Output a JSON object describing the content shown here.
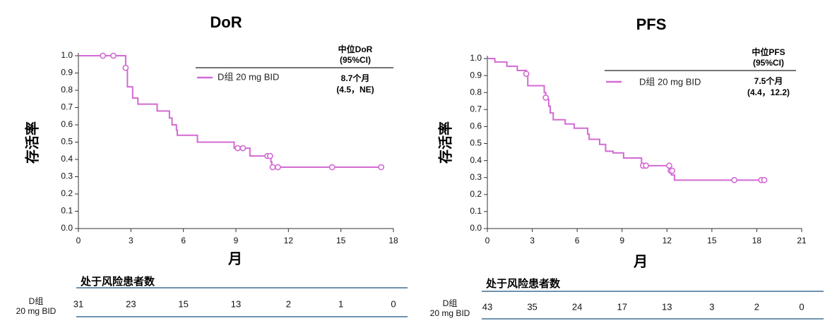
{
  "line_color": "#d36ad3",
  "axis_color": "#333333",
  "table_rule_color": "#3f6e93",
  "chart_data": [
    {
      "type": "line",
      "title": "DoR",
      "xlabel": "月",
      "ylabel": "存活率",
      "xlim": [
        0,
        18
      ],
      "ylim": [
        0,
        1
      ],
      "x_ticks": [
        "0",
        "3",
        "6",
        "9",
        "12",
        "15",
        "18"
      ],
      "y_ticks": [
        "0.0",
        "0.1",
        "0.2",
        "0.3",
        "0.4",
        "0.5",
        "0.6",
        "0.7",
        "0.8",
        "0.9",
        "1.0"
      ],
      "grid": false,
      "legend_position": "top-right",
      "legend_header": [
        "中位DoR",
        "(95%CI)"
      ],
      "legend_value": [
        "8.7个月",
        "(4.5，NE)"
      ],
      "series": [
        {
          "name": "D组 20 mg BID",
          "steps": [
            [
              0,
              1.0
            ],
            [
              2.7,
              0.935
            ],
            [
              2.8,
              0.82
            ],
            [
              3.1,
              0.755
            ],
            [
              3.4,
              0.72
            ],
            [
              4.5,
              0.68
            ],
            [
              5.2,
              0.64
            ],
            [
              5.35,
              0.6
            ],
            [
              5.6,
              0.57
            ],
            [
              5.65,
              0.54
            ],
            [
              6.8,
              0.5
            ],
            [
              8.9,
              0.465
            ],
            [
              9.8,
              0.42
            ],
            [
              11.0,
              0.385
            ],
            [
              11.05,
              0.355
            ],
            [
              17.3,
              0.355
            ]
          ],
          "censored": [
            [
              1.4,
              1.0
            ],
            [
              2.0,
              1.0
            ],
            [
              2.7,
              0.93
            ],
            [
              9.1,
              0.465
            ],
            [
              9.4,
              0.465
            ],
            [
              10.8,
              0.42
            ],
            [
              10.95,
              0.42
            ],
            [
              11.1,
              0.355
            ],
            [
              11.4,
              0.355
            ],
            [
              14.5,
              0.355
            ],
            [
              17.3,
              0.355
            ]
          ]
        }
      ],
      "risk_table": {
        "title": "处于风险患者数",
        "row_label": [
          "D组",
          "20 mg BID"
        ],
        "counts": [
          "31",
          "23",
          "15",
          "13",
          "2",
          "1",
          "0"
        ]
      }
    },
    {
      "type": "line",
      "title": "PFS",
      "xlabel": "月",
      "ylabel": "存活率",
      "xlim": [
        0,
        21
      ],
      "ylim": [
        0,
        1
      ],
      "x_ticks": [
        "0",
        "3",
        "6",
        "9",
        "12",
        "15",
        "18",
        "21"
      ],
      "y_ticks": [
        "0.0",
        "0.1",
        "0.2",
        "0.3",
        "0.4",
        "0.5",
        "0.6",
        "0.7",
        "0.8",
        "0.9",
        "1.0"
      ],
      "grid": false,
      "legend_position": "top-right",
      "legend_header": [
        "中位PFS",
        "(95%CI)"
      ],
      "legend_value": [
        "7.5个月",
        "(4.4，12.2)"
      ],
      "series": [
        {
          "name": "D组 20 mg BID",
          "steps": [
            [
              0,
              1.0
            ],
            [
              0.5,
              0.98
            ],
            [
              1.3,
              0.955
            ],
            [
              2.0,
              0.93
            ],
            [
              2.6,
              0.905
            ],
            [
              2.7,
              0.84
            ],
            [
              3.8,
              0.8
            ],
            [
              3.9,
              0.76
            ],
            [
              4.1,
              0.72
            ],
            [
              4.2,
              0.68
            ],
            [
              4.4,
              0.64
            ],
            [
              5.2,
              0.615
            ],
            [
              5.8,
              0.59
            ],
            [
              6.7,
              0.555
            ],
            [
              6.8,
              0.525
            ],
            [
              7.5,
              0.495
            ],
            [
              7.9,
              0.455
            ],
            [
              8.4,
              0.445
            ],
            [
              9.1,
              0.415
            ],
            [
              10.3,
              0.37
            ],
            [
              12.2,
              0.34
            ],
            [
              12.3,
              0.315
            ],
            [
              12.5,
              0.285
            ],
            [
              18.6,
              0.285
            ]
          ],
          "censored": [
            [
              2.6,
              0.91
            ],
            [
              3.9,
              0.77
            ],
            [
              10.4,
              0.37
            ],
            [
              10.6,
              0.37
            ],
            [
              12.15,
              0.37
            ],
            [
              12.25,
              0.34
            ],
            [
              12.35,
              0.34
            ],
            [
              16.5,
              0.285
            ],
            [
              18.3,
              0.285
            ],
            [
              18.5,
              0.285
            ]
          ]
        }
      ],
      "risk_table": {
        "title": "处于风险患者数",
        "row_label": [
          "D组",
          "20 mg BID"
        ],
        "counts": [
          "43",
          "35",
          "24",
          "17",
          "13",
          "3",
          "2",
          "0"
        ]
      }
    }
  ]
}
